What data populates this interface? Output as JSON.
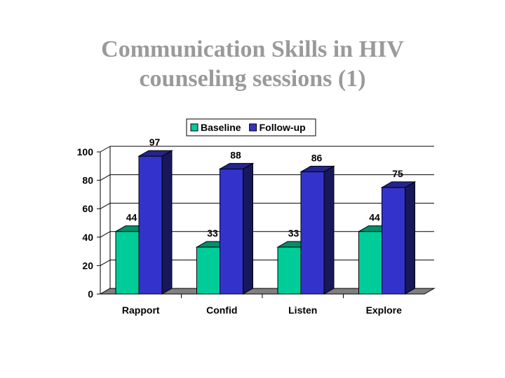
{
  "title_lines": [
    "Communication Skills in HIV",
    "counseling sessions (1)"
  ],
  "chart_data": {
    "type": "bar",
    "title": "Communication Skills in HIV counseling sessions (1)",
    "categories": [
      "Rapport",
      "Confid",
      "Listen",
      "Explore"
    ],
    "series": [
      {
        "name": "Baseline",
        "values": [
          44,
          33,
          33,
          44
        ],
        "color": "#00CC99"
      },
      {
        "name": "Follow-up",
        "values": [
          97,
          88,
          86,
          75
        ],
        "color": "#3333CC"
      }
    ],
    "ylim": [
      0,
      100
    ],
    "yticks": [
      0,
      20,
      40,
      60,
      80,
      100
    ],
    "grid": true,
    "legend": "top",
    "style": "3d"
  }
}
